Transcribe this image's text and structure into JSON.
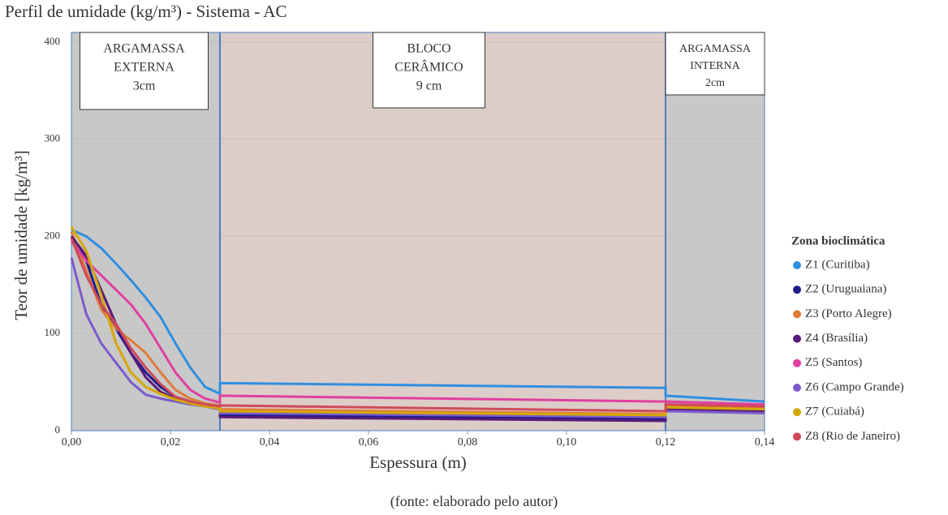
{
  "chart_data": {
    "type": "line",
    "title": "Perfil de umidade (kg/m³) - Sistema - AC",
    "x_label": "Espessura (m)",
    "y_label": "Teor de umidade [kg/m³]",
    "caption": "(fonte: elaborado pelo autor)",
    "legend_title": "Zona bioclimática",
    "xlim": [
      0,
      0.14
    ],
    "ylim": [
      0,
      410
    ],
    "xticks": [
      {
        "value": 0,
        "label": "0,00"
      },
      {
        "value": 0.02,
        "label": "0,02"
      },
      {
        "value": 0.04,
        "label": "0,04"
      },
      {
        "value": 0.06,
        "label": "0,06"
      },
      {
        "value": 0.08,
        "label": "0,08"
      },
      {
        "value": 0.1,
        "label": "0,10"
      },
      {
        "value": 0.12,
        "label": "0,12"
      },
      {
        "value": 0.14,
        "label": "0,14"
      }
    ],
    "yticks": [
      0,
      100,
      200,
      300,
      400
    ],
    "grid": true,
    "regions": [
      {
        "x0": 0,
        "x1": 0.03,
        "color": "#c8c8c8",
        "label": [
          "ARGAMASSA",
          "EXTERNA",
          "3cm"
        ]
      },
      {
        "x0": 0.03,
        "x1": 0.12,
        "color": "#dccdc8",
        "label": [
          "BLOCO",
          "CERÂMICO",
          "9 cm"
        ]
      },
      {
        "x0": 0.12,
        "x1": 0.14,
        "color": "#c8c8c8",
        "label": [
          "ARGAMASSA",
          "INTERNA",
          "2cm"
        ]
      }
    ],
    "x": [
      0,
      0.003,
      0.006,
      0.009,
      0.012,
      0.015,
      0.018,
      0.021,
      0.024,
      0.027,
      0.03,
      0.03,
      0.12,
      0.12,
      0.14
    ],
    "series": [
      {
        "name": "Z1 (Curitiba)",
        "color": "#2f8fe0",
        "values": [
          207,
          200,
          188,
          172,
          155,
          137,
          117,
          90,
          65,
          45,
          38,
          49,
          44,
          36,
          30
        ]
      },
      {
        "name": "Z2 (Uruguaiana)",
        "color": "#1c1c8a",
        "values": [
          200,
          175,
          130,
          105,
          80,
          60,
          45,
          35,
          30,
          27,
          25,
          16,
          12,
          22,
          22
        ]
      },
      {
        "name": "Z3 (Porto Alegre)",
        "color": "#e07b39",
        "values": [
          205,
          165,
          125,
          105,
          93,
          80,
          60,
          42,
          33,
          28,
          26,
          22,
          17,
          26,
          23
        ]
      },
      {
        "name": "Z4 (Brasília)",
        "color": "#5a1a7a",
        "values": [
          200,
          180,
          145,
          110,
          80,
          55,
          40,
          33,
          29,
          26,
          24,
          14,
          10,
          22,
          20
        ]
      },
      {
        "name": "Z5 (Santos)",
        "color": "#e040a0",
        "values": [
          195,
          175,
          160,
          145,
          130,
          110,
          85,
          60,
          42,
          33,
          29,
          36,
          30,
          30,
          27
        ]
      },
      {
        "name": "Z6 (Campo Grande)",
        "color": "#7b5ccc",
        "values": [
          178,
          120,
          90,
          70,
          50,
          37,
          33,
          30,
          27,
          25,
          22,
          18,
          14,
          20,
          18
        ]
      },
      {
        "name": "Z7 (Cuiabá)",
        "color": "#d4a800",
        "values": [
          210,
          185,
          140,
          90,
          60,
          45,
          38,
          32,
          28,
          25,
          23,
          20,
          16,
          24,
          22
        ]
      },
      {
        "name": "Z8 (Rio de Janeiro)",
        "color": "#d04a5a",
        "values": [
          198,
          160,
          130,
          110,
          85,
          65,
          48,
          35,
          30,
          27,
          25,
          26,
          20,
          27,
          25
        ]
      }
    ]
  }
}
